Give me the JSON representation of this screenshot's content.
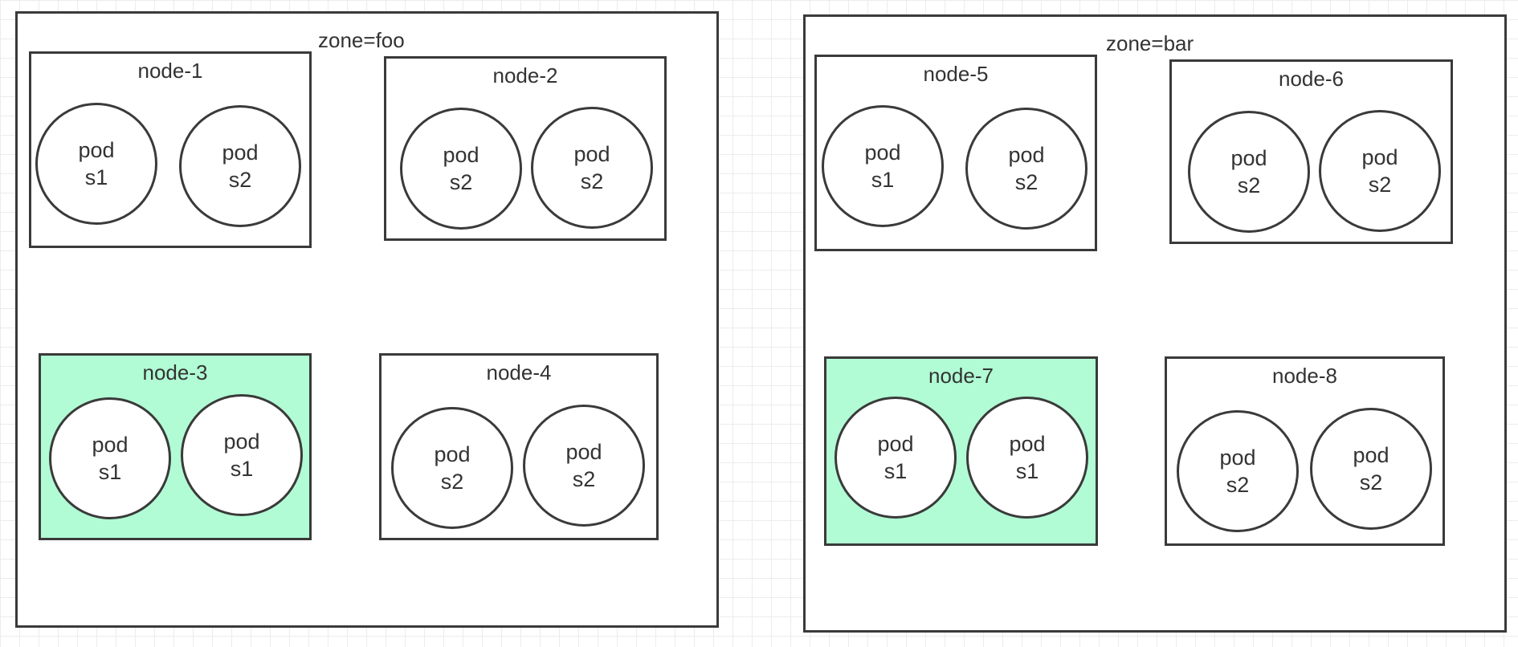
{
  "colors": {
    "stroke": "#3a3a3a",
    "highlight_fill": "#b1fcd4",
    "text": "#333333",
    "grid": "#ececec"
  },
  "zones": [
    {
      "label": "zone=foo",
      "nodes": [
        {
          "label": "node-1",
          "highlighted": false,
          "pods": [
            {
              "name": "pod",
              "service": "s1"
            },
            {
              "name": "pod",
              "service": "s2"
            }
          ]
        },
        {
          "label": "node-2",
          "highlighted": false,
          "pods": [
            {
              "name": "pod",
              "service": "s2"
            },
            {
              "name": "pod",
              "service": "s2"
            }
          ]
        },
        {
          "label": "node-3",
          "highlighted": true,
          "pods": [
            {
              "name": "pod",
              "service": "s1"
            },
            {
              "name": "pod",
              "service": "s1"
            }
          ]
        },
        {
          "label": "node-4",
          "highlighted": false,
          "pods": [
            {
              "name": "pod",
              "service": "s2"
            },
            {
              "name": "pod",
              "service": "s2"
            }
          ]
        }
      ]
    },
    {
      "label": "zone=bar",
      "nodes": [
        {
          "label": "node-5",
          "highlighted": false,
          "pods": [
            {
              "name": "pod",
              "service": "s1"
            },
            {
              "name": "pod",
              "service": "s2"
            }
          ]
        },
        {
          "label": "node-6",
          "highlighted": false,
          "pods": [
            {
              "name": "pod",
              "service": "s2"
            },
            {
              "name": "pod",
              "service": "s2"
            }
          ]
        },
        {
          "label": "node-7",
          "highlighted": true,
          "pods": [
            {
              "name": "pod",
              "service": "s1"
            },
            {
              "name": "pod",
              "service": "s1"
            }
          ]
        },
        {
          "label": "node-8",
          "highlighted": false,
          "pods": [
            {
              "name": "pod",
              "service": "s2"
            },
            {
              "name": "pod",
              "service": "s2"
            }
          ]
        }
      ]
    }
  ]
}
